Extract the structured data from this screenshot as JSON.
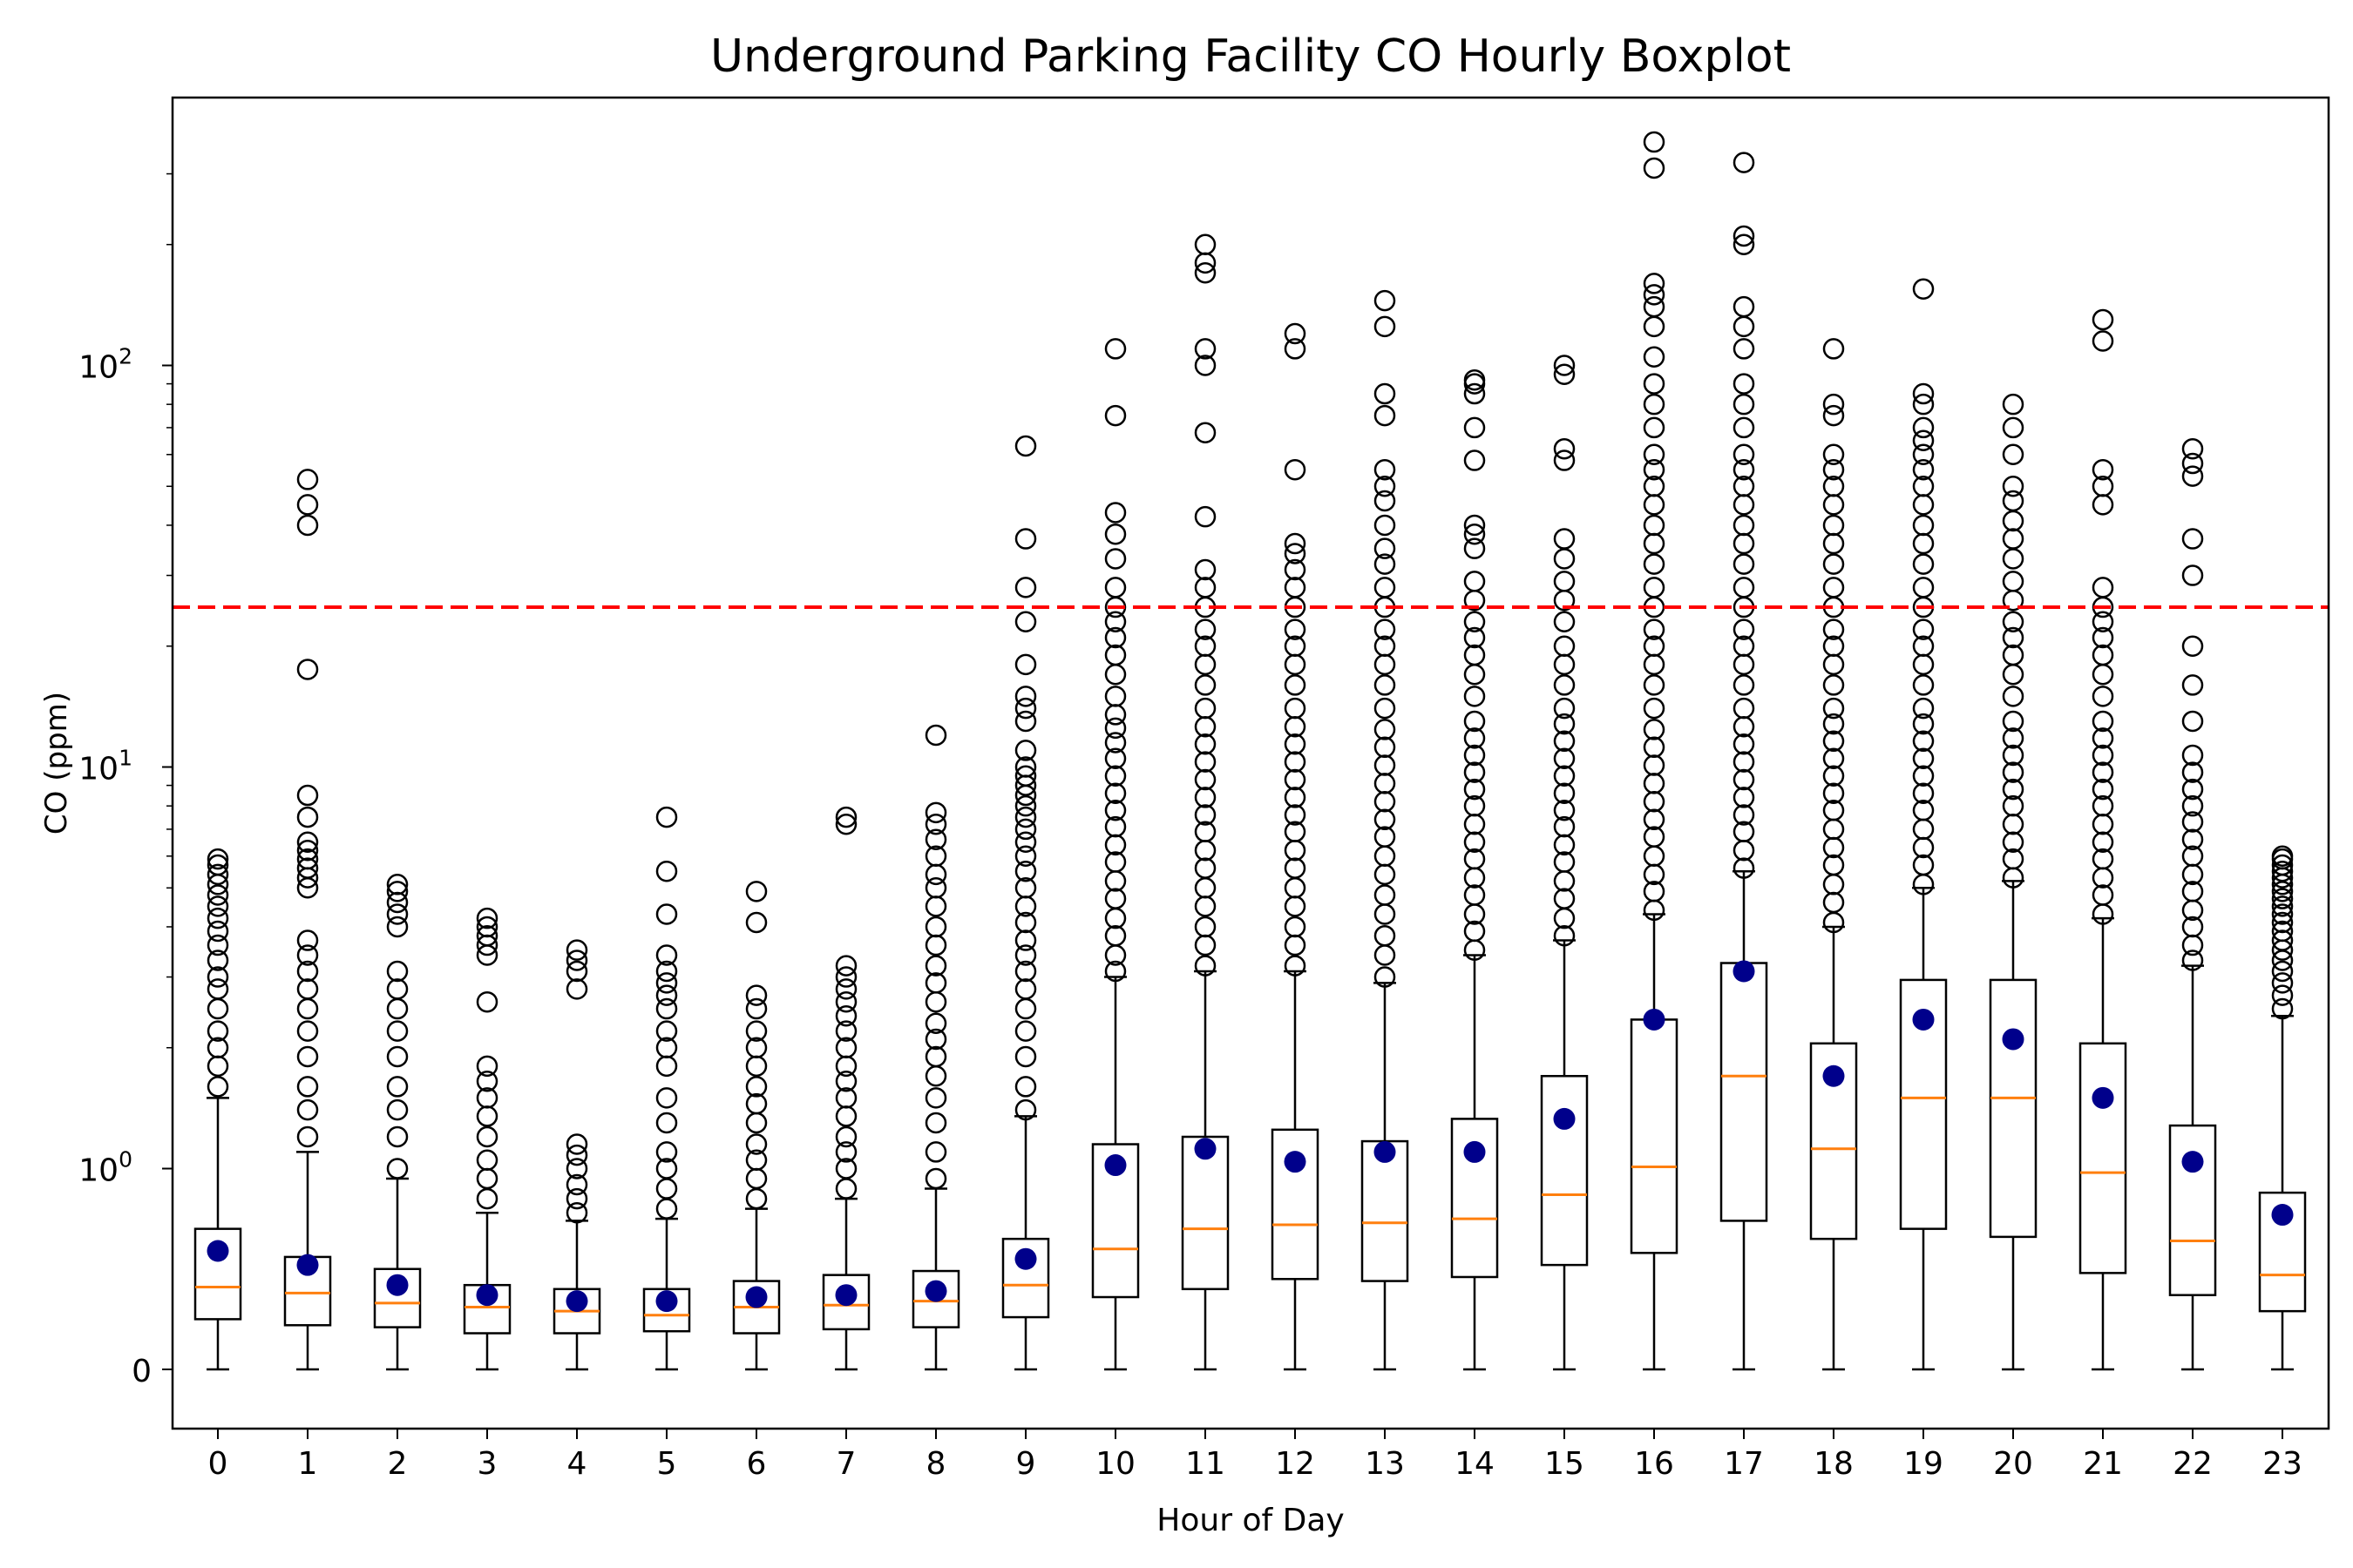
{
  "chart_data": {
    "type": "boxplot",
    "title": "Underground Parking Facility CO Hourly Boxplot",
    "xlabel": "Hour of Day",
    "ylabel": "CO (ppm)",
    "yscale": "symlog",
    "y_ticks": [
      {
        "value": 0,
        "base": "0",
        "exp": ""
      },
      {
        "value": 1,
        "base": "10",
        "exp": "0"
      },
      {
        "value": 10,
        "base": "10",
        "exp": "1"
      },
      {
        "value": 100,
        "base": "10",
        "exp": "2"
      }
    ],
    "threshold": {
      "value": 25,
      "color": "#ff0000",
      "style": "dashed"
    },
    "colors": {
      "median": "#ff7f0e",
      "mean": "#00008b",
      "box": "#000000",
      "flier": "#000000"
    },
    "categories": [
      "0",
      "1",
      "2",
      "3",
      "4",
      "5",
      "6",
      "7",
      "8",
      "9",
      "10",
      "11",
      "12",
      "13",
      "14",
      "15",
      "16",
      "17",
      "18",
      "19",
      "20",
      "21",
      "22",
      "23"
    ],
    "boxes": [
      {
        "hour": "0",
        "min": 0,
        "q1": 0.25,
        "median": 0.41,
        "q3": 0.7,
        "max": 1.5,
        "mean": 0.59,
        "fliers": [
          1.6,
          1.8,
          2.0,
          2.2,
          2.5,
          2.8,
          3.0,
          3.3,
          3.6,
          3.9,
          4.2,
          4.5,
          4.8,
          5.1,
          5.4,
          5.7,
          5.9
        ]
      },
      {
        "hour": "1",
        "min": 0,
        "q1": 0.22,
        "median": 0.38,
        "q3": 0.56,
        "max": 1.1,
        "mean": 0.52,
        "fliers": [
          1.2,
          1.4,
          1.6,
          1.9,
          2.2,
          2.5,
          2.8,
          3.1,
          3.4,
          3.7,
          5.0,
          5.3,
          5.6,
          5.9,
          6.2,
          6.5,
          7.5,
          8.5,
          17.5,
          40,
          45,
          52
        ]
      },
      {
        "hour": "2",
        "min": 0,
        "q1": 0.21,
        "median": 0.33,
        "q3": 0.5,
        "max": 0.95,
        "mean": 0.42,
        "fliers": [
          1.0,
          1.2,
          1.4,
          1.6,
          1.9,
          2.2,
          2.5,
          2.8,
          3.1,
          4.0,
          4.3,
          4.6,
          4.9,
          5.1
        ]
      },
      {
        "hour": "3",
        "min": 0,
        "q1": 0.18,
        "median": 0.31,
        "q3": 0.42,
        "max": 0.78,
        "mean": 0.37,
        "fliers": [
          0.85,
          0.95,
          1.05,
          1.2,
          1.35,
          1.5,
          1.65,
          1.8,
          2.6,
          3.4,
          3.6,
          3.8,
          4.0,
          4.2
        ]
      },
      {
        "hour": "4",
        "min": 0,
        "q1": 0.18,
        "median": 0.29,
        "q3": 0.4,
        "max": 0.74,
        "mean": 0.34,
        "fliers": [
          0.78,
          0.85,
          0.92,
          1.0,
          1.08,
          1.15,
          2.8,
          3.1,
          3.3,
          3.5
        ]
      },
      {
        "hour": "5",
        "min": 0,
        "q1": 0.19,
        "median": 0.27,
        "q3": 0.4,
        "max": 0.75,
        "mean": 0.34,
        "fliers": [
          0.8,
          0.9,
          1.0,
          1.1,
          1.3,
          1.5,
          1.8,
          2.0,
          2.2,
          2.5,
          2.7,
          2.9,
          3.1,
          3.4,
          4.3,
          5.5,
          7.5
        ]
      },
      {
        "hour": "6",
        "min": 0,
        "q1": 0.18,
        "median": 0.31,
        "q3": 0.44,
        "max": 0.8,
        "mean": 0.36,
        "fliers": [
          0.85,
          0.95,
          1.05,
          1.15,
          1.3,
          1.45,
          1.6,
          1.8,
          2.0,
          2.2,
          2.5,
          2.7,
          4.1,
          4.9
        ]
      },
      {
        "hour": "7",
        "min": 0,
        "q1": 0.2,
        "median": 0.32,
        "q3": 0.47,
        "max": 0.85,
        "mean": 0.37,
        "fliers": [
          0.9,
          1.0,
          1.1,
          1.2,
          1.35,
          1.5,
          1.65,
          1.8,
          2.0,
          2.2,
          2.4,
          2.6,
          2.8,
          3.0,
          3.2,
          7.2,
          7.5
        ]
      },
      {
        "hour": "8",
        "min": 0,
        "q1": 0.21,
        "median": 0.34,
        "q3": 0.49,
        "max": 0.9,
        "mean": 0.39,
        "fliers": [
          0.95,
          1.1,
          1.3,
          1.5,
          1.7,
          1.9,
          2.1,
          2.3,
          2.6,
          2.9,
          3.2,
          3.6,
          4.0,
          4.5,
          5.0,
          5.4,
          6.0,
          6.6,
          7.2,
          7.7,
          12
        ]
      },
      {
        "hour": "9",
        "min": 0,
        "q1": 0.26,
        "median": 0.42,
        "q3": 0.65,
        "max": 1.35,
        "mean": 0.55,
        "fliers": [
          1.4,
          1.6,
          1.9,
          2.2,
          2.5,
          2.8,
          3.1,
          3.4,
          3.7,
          4.1,
          4.5,
          5.0,
          5.5,
          6.0,
          6.5,
          7.0,
          7.5,
          8.0,
          8.5,
          9.0,
          9.5,
          10,
          11,
          13,
          14,
          15,
          18,
          23,
          28,
          37,
          63
        ]
      },
      {
        "hour": "10",
        "min": 0,
        "q1": 0.36,
        "median": 0.6,
        "q3": 1.15,
        "max": 3.0,
        "mean": 1.02,
        "fliers": [
          3.1,
          3.4,
          3.8,
          4.2,
          4.7,
          5.2,
          5.8,
          6.4,
          7.1,
          7.8,
          8.6,
          9.5,
          10.5,
          11.5,
          12.5,
          13.5,
          15,
          17,
          19,
          21,
          23,
          25,
          28,
          33,
          38,
          43,
          75,
          110
        ]
      },
      {
        "hour": "11",
        "min": 0,
        "q1": 0.4,
        "median": 0.7,
        "q3": 1.2,
        "max": 3.1,
        "mean": 1.12,
        "fliers": [
          3.2,
          3.6,
          4.0,
          4.5,
          5.0,
          5.6,
          6.2,
          6.9,
          7.6,
          8.4,
          9.3,
          10.3,
          11.4,
          12.6,
          14,
          16,
          18,
          20,
          22,
          25,
          28,
          31,
          42,
          68,
          100,
          110,
          170,
          180,
          200
        ]
      },
      {
        "hour": "12",
        "min": 0,
        "q1": 0.45,
        "median": 0.72,
        "q3": 1.25,
        "max": 3.1,
        "mean": 1.04,
        "fliers": [
          3.2,
          3.6,
          4.0,
          4.5,
          5.0,
          5.6,
          6.2,
          6.9,
          7.6,
          8.4,
          9.3,
          10.3,
          11.4,
          12.6,
          14,
          16,
          18,
          20,
          22,
          25,
          28,
          31,
          34,
          36,
          55,
          110,
          120
        ]
      },
      {
        "hour": "13",
        "min": 0,
        "q1": 0.44,
        "median": 0.73,
        "q3": 1.17,
        "max": 2.9,
        "mean": 1.1,
        "fliers": [
          3.0,
          3.4,
          3.8,
          4.3,
          4.8,
          5.4,
          6.0,
          6.7,
          7.4,
          8.2,
          9.1,
          10.1,
          11.2,
          12.4,
          14,
          16,
          18,
          20,
          22,
          25,
          28,
          32,
          35,
          40,
          46,
          50,
          55,
          75,
          85,
          125,
          145
        ]
      },
      {
        "hour": "14",
        "min": 0,
        "q1": 0.46,
        "median": 0.75,
        "q3": 1.33,
        "max": 3.4,
        "mean": 1.1,
        "fliers": [
          3.5,
          3.9,
          4.3,
          4.8,
          5.3,
          5.9,
          6.5,
          7.2,
          8.0,
          8.8,
          9.7,
          10.7,
          11.8,
          13,
          15,
          17,
          19,
          21,
          23,
          26,
          29,
          35,
          38,
          40,
          58,
          70,
          85,
          90,
          92
        ]
      },
      {
        "hour": "15",
        "min": 0,
        "q1": 0.52,
        "median": 0.87,
        "q3": 1.7,
        "max": 3.7,
        "mean": 1.33,
        "fliers": [
          3.8,
          4.2,
          4.7,
          5.2,
          5.8,
          6.4,
          7.1,
          7.8,
          8.6,
          9.5,
          10.5,
          11.6,
          12.8,
          14,
          16,
          18,
          20,
          23,
          26,
          29,
          33,
          37,
          58,
          62,
          95,
          100
        ]
      },
      {
        "hour": "16",
        "min": 0,
        "q1": 0.58,
        "median": 1.01,
        "q3": 2.35,
        "max": 4.3,
        "mean": 2.35,
        "fliers": [
          4.4,
          4.9,
          5.4,
          6.0,
          6.7,
          7.4,
          8.2,
          9.1,
          10.1,
          11.2,
          12.4,
          14,
          16,
          18,
          20,
          22,
          25,
          28,
          32,
          36,
          40,
          45,
          50,
          55,
          60,
          70,
          80,
          90,
          105,
          125,
          140,
          150,
          160,
          310,
          360
        ]
      },
      {
        "hour": "17",
        "min": 0,
        "q1": 0.74,
        "median": 1.7,
        "q3": 3.25,
        "max": 5.5,
        "mean": 3.1,
        "fliers": [
          5.6,
          6.2,
          6.9,
          7.6,
          8.4,
          9.3,
          10.3,
          11.4,
          12.6,
          14,
          16,
          18,
          20,
          22,
          25,
          28,
          32,
          36,
          40,
          45,
          50,
          55,
          60,
          70,
          80,
          90,
          110,
          125,
          140,
          200,
          210,
          320
        ]
      },
      {
        "hour": "18",
        "min": 0,
        "q1": 0.65,
        "median": 1.12,
        "q3": 2.05,
        "max": 4.0,
        "mean": 1.7,
        "fliers": [
          4.1,
          4.6,
          5.1,
          5.7,
          6.3,
          7.0,
          7.8,
          8.6,
          9.5,
          10.5,
          11.6,
          12.8,
          14,
          16,
          18,
          20,
          22,
          25,
          28,
          32,
          36,
          40,
          45,
          50,
          55,
          60,
          75,
          80,
          110
        ]
      },
      {
        "hour": "19",
        "min": 0,
        "q1": 0.7,
        "median": 1.5,
        "q3": 2.95,
        "max": 5.0,
        "mean": 2.35,
        "fliers": [
          5.1,
          5.7,
          6.3,
          7.0,
          7.8,
          8.6,
          9.5,
          10.5,
          11.6,
          12.8,
          14,
          16,
          18,
          20,
          22,
          25,
          28,
          32,
          36,
          40,
          45,
          50,
          55,
          60,
          65,
          70,
          80,
          85,
          155
        ]
      },
      {
        "hour": "20",
        "min": 0,
        "q1": 0.66,
        "median": 1.5,
        "q3": 2.95,
        "max": 5.2,
        "mean": 2.1,
        "fliers": [
          5.3,
          5.9,
          6.5,
          7.2,
          8.0,
          8.8,
          9.7,
          10.7,
          11.8,
          13,
          15,
          17,
          19,
          21,
          23,
          26,
          29,
          33,
          37,
          41,
          46,
          50,
          60,
          70,
          80
        ]
      },
      {
        "hour": "21",
        "min": 0,
        "q1": 0.48,
        "median": 0.98,
        "q3": 2.05,
        "max": 4.2,
        "mean": 1.5,
        "fliers": [
          4.3,
          4.8,
          5.3,
          5.9,
          6.5,
          7.2,
          8.0,
          8.8,
          9.7,
          10.7,
          11.8,
          13,
          15,
          17,
          19,
          21,
          23,
          25,
          28,
          45,
          50,
          55,
          115,
          130
        ]
      },
      {
        "hour": "22",
        "min": 0,
        "q1": 0.37,
        "median": 0.64,
        "q3": 1.28,
        "max": 3.2,
        "mean": 1.04,
        "fliers": [
          3.3,
          3.6,
          4.0,
          4.4,
          4.9,
          5.4,
          6.0,
          6.6,
          7.3,
          8.0,
          8.8,
          9.7,
          10.7,
          13,
          16,
          20,
          30,
          37,
          53,
          57,
          62
        ]
      },
      {
        "hour": "23",
        "min": 0,
        "q1": 0.29,
        "median": 0.47,
        "q3": 0.88,
        "max": 2.4,
        "mean": 0.77,
        "fliers": [
          2.5,
          2.7,
          2.9,
          3.1,
          3.3,
          3.5,
          3.7,
          3.9,
          4.1,
          4.3,
          4.5,
          4.7,
          4.9,
          5.1,
          5.3,
          5.5,
          5.7,
          5.9,
          6.0
        ]
      }
    ]
  }
}
